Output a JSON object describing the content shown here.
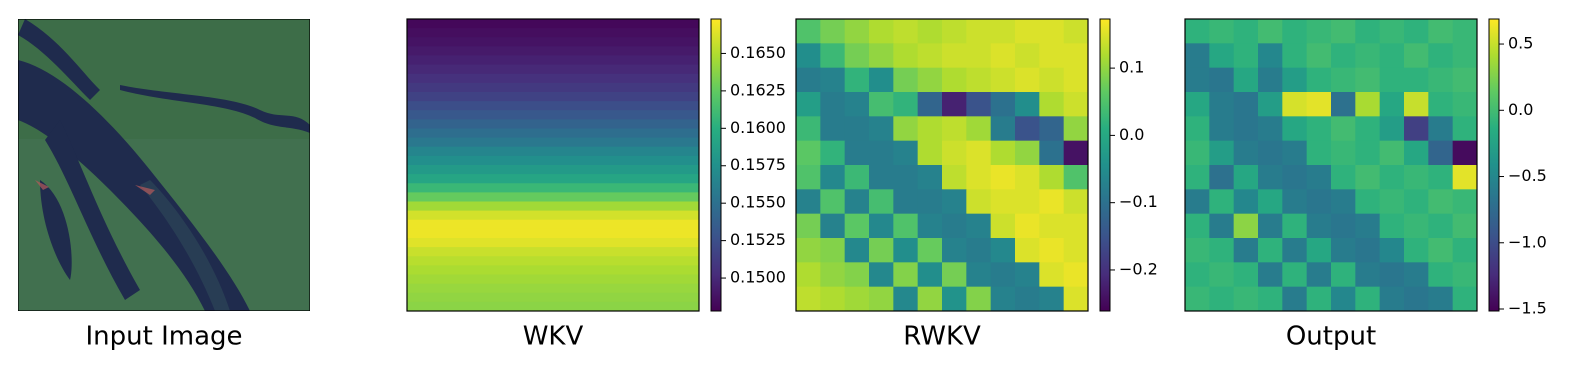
{
  "chart_data": [
    {
      "type": "image",
      "title": "Input Image"
    },
    {
      "type": "heatmap",
      "title": "WKV",
      "colormap": "viridis",
      "values": [
        [
          0.1482
        ],
        [
          0.1485
        ],
        [
          0.1488
        ],
        [
          0.1492
        ],
        [
          0.1496
        ],
        [
          0.15
        ],
        [
          0.1505
        ],
        [
          0.151
        ],
        [
          0.1516
        ],
        [
          0.1524
        ],
        [
          0.1531
        ],
        [
          0.154
        ],
        [
          0.1548
        ],
        [
          0.1556
        ],
        [
          0.1566
        ],
        [
          0.1574
        ],
        [
          0.1583
        ],
        [
          0.1592
        ],
        [
          0.1608
        ],
        [
          0.1626
        ],
        [
          0.1645
        ],
        [
          0.166
        ],
        [
          0.1668
        ],
        [
          0.1668
        ],
        [
          0.1664
        ],
        [
          0.1657
        ],
        [
          0.1652
        ],
        [
          0.1648
        ],
        [
          0.1645
        ],
        [
          0.1642
        ],
        [
          0.164
        ],
        [
          0.1638
        ]
      ],
      "ylim": [
        0.1478,
        0.1673
      ],
      "yticks": [
        {
          "value": 0.15,
          "label": "0.1500"
        },
        0.1525,
        {
          "value": 0.155,
          "label": "0.1550"
        },
        0.1575,
        {
          "value": 0.16,
          "label": "0.1600"
        },
        0.1625,
        {
          "value": 0.165,
          "label": "0.1650"
        }
      ]
    },
    {
      "type": "heatmap",
      "title": "RWKV",
      "colormap": "viridis",
      "values": [
        [
          0.05,
          0.08,
          0.1,
          0.12,
          0.13,
          0.12,
          0.13,
          0.14,
          0.14,
          0.15,
          0.15,
          0.14
        ],
        [
          -0.05,
          0.03,
          0.08,
          0.1,
          0.12,
          0.13,
          0.14,
          0.14,
          0.15,
          0.14,
          0.15,
          0.15
        ],
        [
          -0.08,
          -0.07,
          0.02,
          -0.05,
          0.08,
          0.1,
          0.12,
          0.13,
          0.14,
          0.15,
          0.14,
          0.15
        ],
        [
          -0.02,
          -0.08,
          -0.07,
          0.04,
          0.02,
          -0.12,
          -0.22,
          -0.15,
          -0.1,
          -0.05,
          0.12,
          0.14
        ],
        [
          0.03,
          -0.08,
          -0.08,
          -0.07,
          0.1,
          0.12,
          0.13,
          0.11,
          -0.08,
          -0.15,
          -0.12,
          0.1
        ],
        [
          0.06,
          0.02,
          -0.08,
          -0.08,
          -0.07,
          0.12,
          0.14,
          0.15,
          0.12,
          0.1,
          -0.1,
          -0.24
        ],
        [
          0.05,
          -0.06,
          0.03,
          -0.08,
          -0.08,
          -0.07,
          0.13,
          0.15,
          0.16,
          0.15,
          0.12,
          0.05
        ],
        [
          -0.07,
          0.05,
          -0.07,
          0.04,
          -0.08,
          -0.08,
          -0.07,
          0.14,
          0.15,
          0.15,
          0.16,
          0.14
        ],
        [
          0.08,
          -0.07,
          0.06,
          -0.06,
          0.05,
          -0.07,
          -0.08,
          -0.07,
          0.14,
          0.16,
          0.15,
          0.15
        ],
        [
          0.1,
          0.09,
          -0.06,
          0.08,
          -0.05,
          0.07,
          -0.07,
          -0.08,
          -0.06,
          0.15,
          0.16,
          0.15
        ],
        [
          0.12,
          0.1,
          0.09,
          -0.06,
          0.09,
          -0.05,
          0.08,
          -0.07,
          -0.08,
          -0.07,
          0.15,
          0.16
        ],
        [
          0.13,
          0.12,
          0.11,
          0.1,
          -0.06,
          0.1,
          -0.04,
          0.09,
          -0.07,
          -0.08,
          -0.07,
          0.15
        ]
      ],
      "ylim": [
        -0.261,
        0.173
      ],
      "yticks": [
        {
          "value": -0.2,
          "label": "−0.2"
        },
        {
          "value": -0.1,
          "label": "−0.1"
        },
        {
          "value": 0,
          "label": "0.0"
        },
        0.1
      ]
    },
    {
      "type": "heatmap",
      "title": "Output",
      "colormap": "viridis",
      "values": [
        [
          -0.1,
          -0.05,
          -0.1,
          0.0,
          -0.1,
          -0.05,
          0.0,
          -0.1,
          -0.05,
          -0.1,
          0.0,
          -0.05
        ],
        [
          -0.6,
          -0.2,
          -0.1,
          -0.5,
          -0.1,
          0.0,
          -0.1,
          -0.05,
          -0.1,
          0.0,
          -0.1,
          -0.05
        ],
        [
          -0.6,
          -0.65,
          -0.2,
          -0.6,
          -0.3,
          -0.1,
          -0.05,
          0.0,
          -0.1,
          -0.1,
          -0.05,
          0.0
        ],
        [
          -0.2,
          -0.6,
          -0.65,
          -0.3,
          0.55,
          0.6,
          -0.7,
          0.4,
          -0.2,
          0.5,
          -0.1,
          -0.05
        ],
        [
          -0.1,
          -0.6,
          -0.65,
          -0.6,
          -0.2,
          -0.1,
          0.0,
          -0.1,
          -0.3,
          -1.1,
          -0.6,
          -0.1
        ],
        [
          -0.05,
          -0.3,
          -0.6,
          -0.65,
          -0.6,
          -0.1,
          -0.05,
          -0.1,
          0.0,
          -0.2,
          -0.8,
          -1.45
        ],
        [
          -0.1,
          -0.7,
          -0.2,
          -0.6,
          -0.65,
          -0.6,
          -0.1,
          0.0,
          -0.1,
          -0.05,
          -0.1,
          0.6
        ],
        [
          -0.6,
          -0.1,
          -0.5,
          -0.2,
          -0.6,
          -0.65,
          -0.6,
          -0.1,
          -0.05,
          -0.1,
          0.0,
          -0.05
        ],
        [
          -0.1,
          -0.6,
          0.3,
          -0.6,
          -0.1,
          -0.6,
          -0.65,
          -0.6,
          -0.1,
          -0.05,
          -0.1,
          0.0
        ],
        [
          -0.05,
          -0.1,
          -0.6,
          -0.1,
          -0.6,
          -0.2,
          -0.6,
          -0.65,
          -0.5,
          -0.1,
          0.0,
          -0.1
        ],
        [
          -0.1,
          -0.05,
          -0.1,
          -0.6,
          -0.1,
          -0.6,
          -0.1,
          -0.6,
          -0.65,
          -0.6,
          -0.1,
          -0.05
        ],
        [
          -0.05,
          -0.1,
          -0.05,
          -0.1,
          -0.6,
          -0.1,
          -0.5,
          -0.1,
          -0.6,
          -0.65,
          -0.6,
          -0.1
        ]
      ],
      "ylim": [
        -1.515,
        0.689
      ],
      "yticks": [
        {
          "value": -1.5,
          "label": "−1.5"
        },
        {
          "value": -1,
          "label": "−1.0"
        },
        {
          "value": -0.5,
          "label": "−0.5"
        },
        {
          "value": 0,
          "label": "0.0"
        },
        0.5
      ]
    }
  ]
}
